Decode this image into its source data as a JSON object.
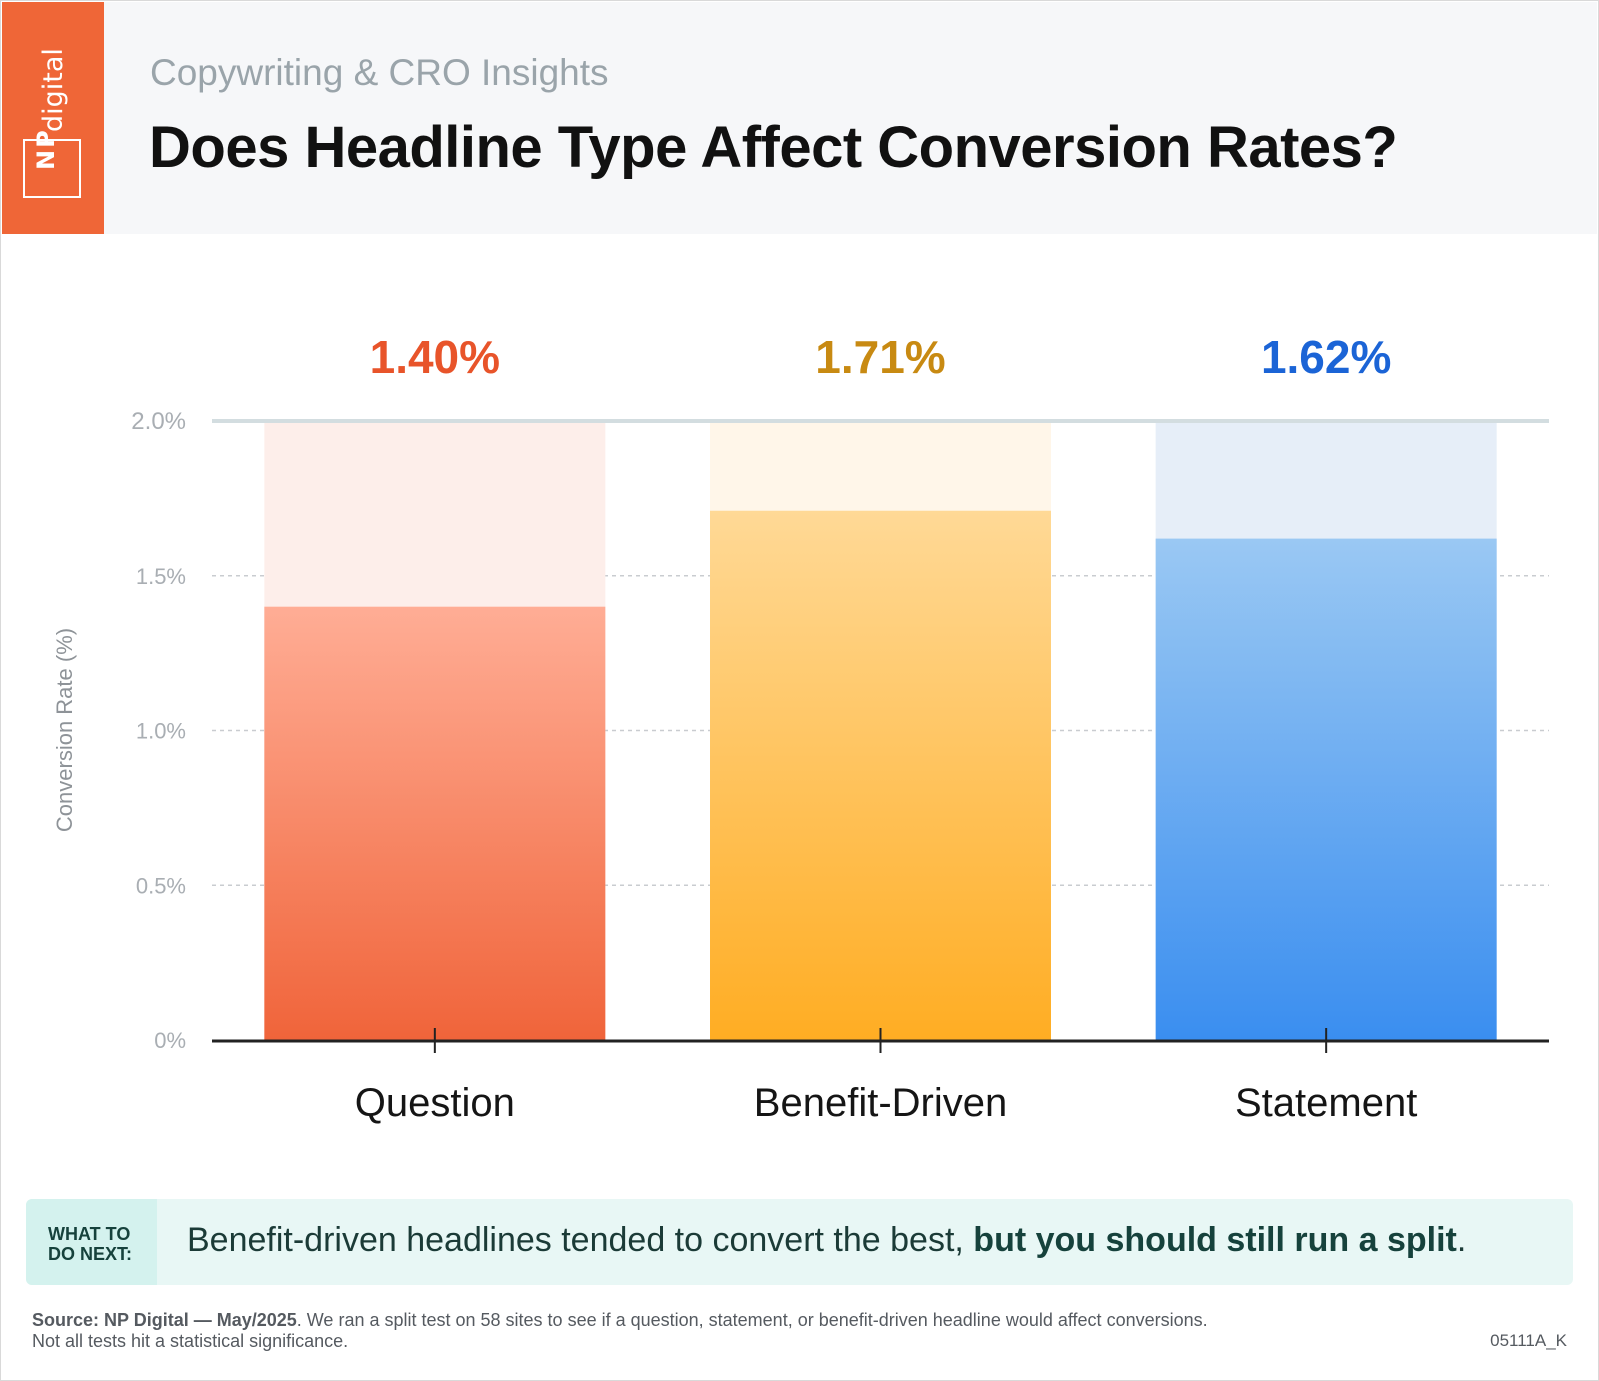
{
  "brand": {
    "logo_np": "NP",
    "logo_digital": "digital",
    "color": "#ef6637"
  },
  "header": {
    "subtitle": "Copywriting & CRO Insights",
    "title": "Does Headline Type Affect Conversion Rates?"
  },
  "chart_data": {
    "type": "bar",
    "categories": [
      "Question",
      "Benefit-Driven",
      "Statement"
    ],
    "values": [
      1.4,
      1.71,
      1.62
    ],
    "value_labels": [
      "1.40%",
      "1.71%",
      "1.62%"
    ],
    "ylabel": "Conversion Rate (%)",
    "xlabel": "",
    "ylim": [
      0,
      2.0
    ],
    "yticks": [
      0,
      0.5,
      1.0,
      1.5,
      2.0
    ],
    "ytick_labels": [
      "0%",
      "0.5%",
      "1.0%",
      "1.5%",
      "2.0%"
    ],
    "grid": true,
    "colors": [
      {
        "label": "#e8542a",
        "bar_top": "#ffad95",
        "bar_bottom": "#f0643a",
        "bg": "#fdeeea"
      },
      {
        "label": "#c88a12",
        "bar_top": "#ffd996",
        "bar_bottom": "#ffad23",
        "bg": "#fff6e9"
      },
      {
        "label": "#1b64d6",
        "bar_top": "#9ac8f3",
        "bar_bottom": "#3a8ef0",
        "bg": "#e6eef8"
      }
    ]
  },
  "callout": {
    "tag_line1": "WHAT TO",
    "tag_line2": "DO NEXT:",
    "text_plain": "Benefit-driven headlines tended to convert the best, ",
    "text_bold": "but you should still run a split",
    "text_end": "."
  },
  "footer": {
    "source_bold": "Source: NP Digital — May/2025",
    "source_text": ". We ran a split test on 58 sites to see if a question, statement, or benefit-driven headline would affect conversions.",
    "source_line2": "Not all tests hit a statistical significance.",
    "code": "05111A_K"
  }
}
